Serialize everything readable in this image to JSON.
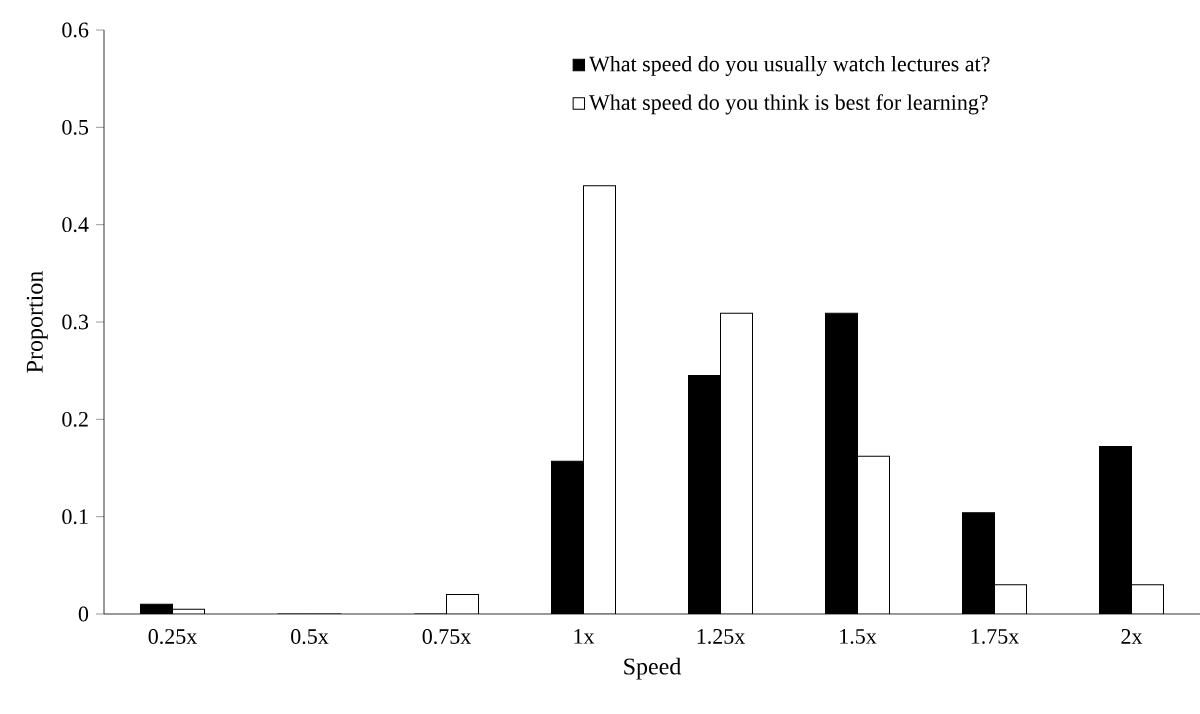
{
  "chart_data": {
    "type": "bar",
    "xlabel": "Speed",
    "ylabel": "Proportion",
    "categories": [
      "0.25x",
      "0.5x",
      "0.75x",
      "1x",
      "1.25x",
      "1.5x",
      "1.75x",
      "2x"
    ],
    "series": [
      {
        "name": "What speed do you usually watch lectures at?",
        "color": "#000000",
        "values": [
          0.01,
          0,
          0,
          0.157,
          0.245,
          0.309,
          0.104,
          0.172
        ]
      },
      {
        "name": "What speed do you think is best for learning?",
        "color": "#ffffff",
        "values": [
          0.005,
          0,
          0.02,
          0.44,
          0.309,
          0.162,
          0.03,
          0.03
        ]
      }
    ],
    "ylim": [
      0,
      0.6
    ],
    "yticks": [
      0,
      0.1,
      0.2,
      0.3,
      0.4,
      0.5,
      0.6
    ],
    "grid": false,
    "legend": "top"
  }
}
